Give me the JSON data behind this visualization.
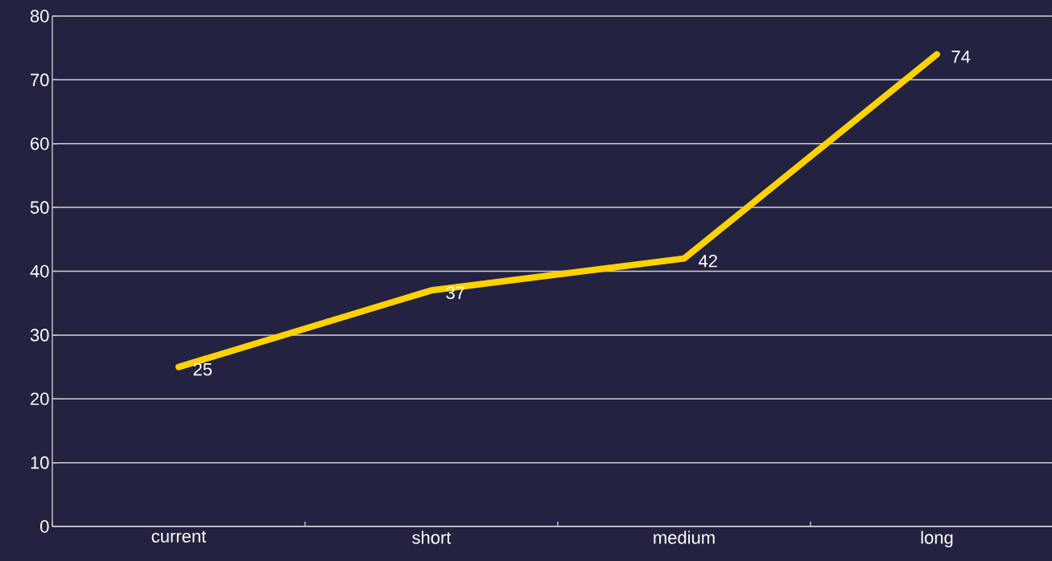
{
  "chart_data": {
    "type": "line",
    "categories": [
      "current",
      "short",
      "medium",
      "long"
    ],
    "series": [
      {
        "color": "#ffd200",
        "values": [
          25,
          37,
          42,
          74
        ]
      }
    ],
    "ylim": [
      0,
      80
    ],
    "yticks": [
      0,
      10,
      20,
      30,
      40,
      50,
      60,
      70,
      80
    ],
    "grid": "y",
    "data_labels": true
  }
}
